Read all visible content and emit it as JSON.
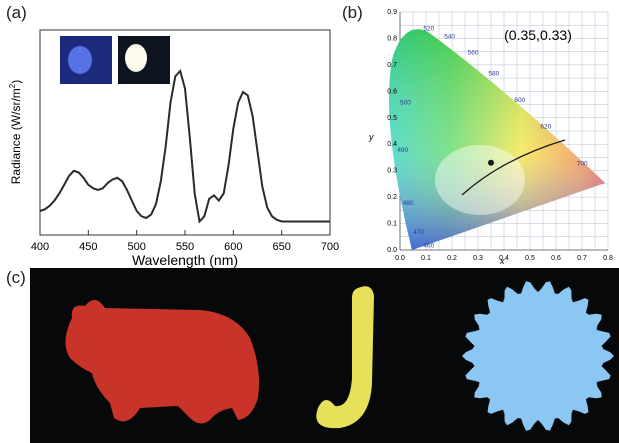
{
  "panels": {
    "a": "(a)",
    "b": "(b)",
    "c": "(c)"
  },
  "chart_data": [
    {
      "type": "line",
      "xlabel": "Wavelength (nm)",
      "ylabel": "Radiance (W/sr/m",
      "ylabel_sup": "2",
      "ylabel_close": ")",
      "xlim": [
        400,
        700
      ],
      "xticks": [
        "400",
        "450",
        "500",
        "550",
        "600",
        "650",
        "700"
      ],
      "series": [
        {
          "x": [
            400,
            405,
            410,
            415,
            420,
            425,
            430,
            435,
            440,
            445,
            450,
            455,
            460,
            465,
            470,
            475,
            480,
            485,
            490,
            495,
            500,
            505,
            510,
            515,
            520,
            525,
            530,
            535,
            540,
            545,
            550,
            555,
            560,
            565,
            570,
            575,
            580,
            585,
            590,
            595,
            600,
            605,
            610,
            615,
            620,
            625,
            630,
            635,
            640,
            645,
            650,
            655,
            660,
            665,
            670,
            675,
            680,
            685,
            690,
            695,
            700
          ],
          "y": [
            0.08,
            0.09,
            0.11,
            0.14,
            0.18,
            0.23,
            0.28,
            0.31,
            0.3,
            0.27,
            0.23,
            0.21,
            0.2,
            0.21,
            0.24,
            0.26,
            0.27,
            0.25,
            0.2,
            0.14,
            0.08,
            0.05,
            0.04,
            0.06,
            0.12,
            0.25,
            0.45,
            0.7,
            0.85,
            0.88,
            0.78,
            0.5,
            0.18,
            0.02,
            0.05,
            0.15,
            0.17,
            0.14,
            0.18,
            0.34,
            0.55,
            0.7,
            0.76,
            0.74,
            0.62,
            0.42,
            0.22,
            0.1,
            0.05,
            0.03,
            0.02,
            0.02,
            0.02,
            0.02,
            0.02,
            0.02,
            0.02,
            0.02,
            0.02,
            0.02,
            0.02
          ]
        }
      ]
    },
    {
      "type": "scatter",
      "title": "(0.35,0.33)",
      "xlabel": "x",
      "ylabel": "y",
      "xlim": [
        0.0,
        0.8
      ],
      "ylim": [
        0.0,
        0.9
      ],
      "xticks": [
        "0.0",
        "0.1",
        "0.2",
        "0.3",
        "0.4",
        "0.5",
        "0.6",
        "0.7",
        "0.8"
      ],
      "yticks": [
        "0.0",
        "0.1",
        "0.2",
        "0.3",
        "0.4",
        "0.5",
        "0.6",
        "0.7",
        "0.8",
        "0.9"
      ],
      "wavelength_labels": [
        "520",
        "540",
        "560",
        "580",
        "600",
        "620",
        "700",
        "500",
        "490",
        "480",
        "470",
        "460"
      ],
      "point": {
        "x": 0.35,
        "y": 0.33
      }
    }
  ],
  "colors": {
    "bear": "#c8332a",
    "candy": "#e6e05a",
    "disc": "#8cc6f2",
    "led_blue": "#3a4fd8"
  }
}
